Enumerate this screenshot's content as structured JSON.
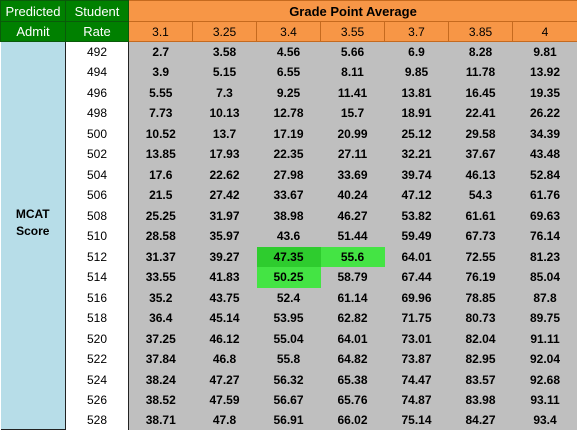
{
  "header": {
    "col1_line1": "Predicted",
    "col1_line2": "Admit",
    "col2_line1": "Student",
    "col2_line2": "Rate",
    "gpa_title": "Grade Point Average"
  },
  "gpa_columns": [
    "3.1",
    "3.25",
    "3.4",
    "3.55",
    "3.7",
    "3.85",
    "4"
  ],
  "side_label": {
    "line1": "MCAT",
    "line2": "Score"
  },
  "colors": {
    "header_green": "#008000",
    "header_orange": "#f79646",
    "side_blue": "#b7dde8",
    "cell_gray": "#bfbfbf",
    "highlight_green": "#44e444"
  },
  "rows": [
    {
      "mcat": "492",
      "values": [
        "2.7",
        "3.58",
        "4.56",
        "5.66",
        "6.9",
        "8.28",
        "9.81"
      ]
    },
    {
      "mcat": "494",
      "values": [
        "3.9",
        "5.15",
        "6.55",
        "8.11",
        "9.85",
        "11.78",
        "13.92"
      ]
    },
    {
      "mcat": "496",
      "values": [
        "5.55",
        "7.3",
        "9.25",
        "11.41",
        "13.81",
        "16.45",
        "19.35"
      ]
    },
    {
      "mcat": "498",
      "values": [
        "7.73",
        "10.13",
        "12.78",
        "15.7",
        "18.91",
        "22.41",
        "26.22"
      ]
    },
    {
      "mcat": "500",
      "values": [
        "10.52",
        "13.7",
        "17.19",
        "20.99",
        "25.12",
        "29.58",
        "34.39"
      ]
    },
    {
      "mcat": "502",
      "values": [
        "13.85",
        "17.93",
        "22.35",
        "27.11",
        "32.21",
        "37.67",
        "43.48"
      ]
    },
    {
      "mcat": "504",
      "values": [
        "17.6",
        "22.62",
        "27.98",
        "33.69",
        "39.74",
        "46.13",
        "52.84"
      ]
    },
    {
      "mcat": "506",
      "values": [
        "21.5",
        "27.42",
        "33.67",
        "40.24",
        "47.12",
        "54.3",
        "61.76"
      ]
    },
    {
      "mcat": "508",
      "values": [
        "25.25",
        "31.97",
        "38.98",
        "46.27",
        "53.82",
        "61.61",
        "69.63"
      ]
    },
    {
      "mcat": "510",
      "values": [
        "28.58",
        "35.97",
        "43.6",
        "51.44",
        "59.49",
        "67.73",
        "76.14"
      ]
    },
    {
      "mcat": "512",
      "values": [
        "31.37",
        "39.27",
        "47.35",
        "55.6",
        "64.01",
        "72.55",
        "81.23"
      ]
    },
    {
      "mcat": "514",
      "values": [
        "33.55",
        "41.83",
        "50.25",
        "58.79",
        "67.44",
        "76.19",
        "85.04"
      ]
    },
    {
      "mcat": "516",
      "values": [
        "35.2",
        "43.75",
        "52.4",
        "61.14",
        "69.96",
        "78.85",
        "87.8"
      ]
    },
    {
      "mcat": "518",
      "values": [
        "36.4",
        "45.14",
        "53.95",
        "62.82",
        "71.75",
        "80.73",
        "89.75"
      ]
    },
    {
      "mcat": "520",
      "values": [
        "37.25",
        "46.12",
        "55.04",
        "64.01",
        "73.01",
        "82.04",
        "91.11"
      ]
    },
    {
      "mcat": "522",
      "values": [
        "37.84",
        "46.8",
        "55.8",
        "64.82",
        "73.87",
        "82.95",
        "92.04"
      ]
    },
    {
      "mcat": "524",
      "values": [
        "38.24",
        "47.27",
        "56.32",
        "65.38",
        "74.47",
        "83.57",
        "92.68"
      ]
    },
    {
      "mcat": "526",
      "values": [
        "38.52",
        "47.59",
        "56.67",
        "65.76",
        "74.87",
        "83.98",
        "93.11"
      ]
    },
    {
      "mcat": "528",
      "values": [
        "38.71",
        "47.8",
        "56.91",
        "66.02",
        "75.14",
        "84.27",
        "93.4"
      ]
    }
  ],
  "highlighted_cells": [
    {
      "row": 10,
      "col": 2
    },
    {
      "row": 10,
      "col": 3
    },
    {
      "row": 11,
      "col": 2
    }
  ]
}
